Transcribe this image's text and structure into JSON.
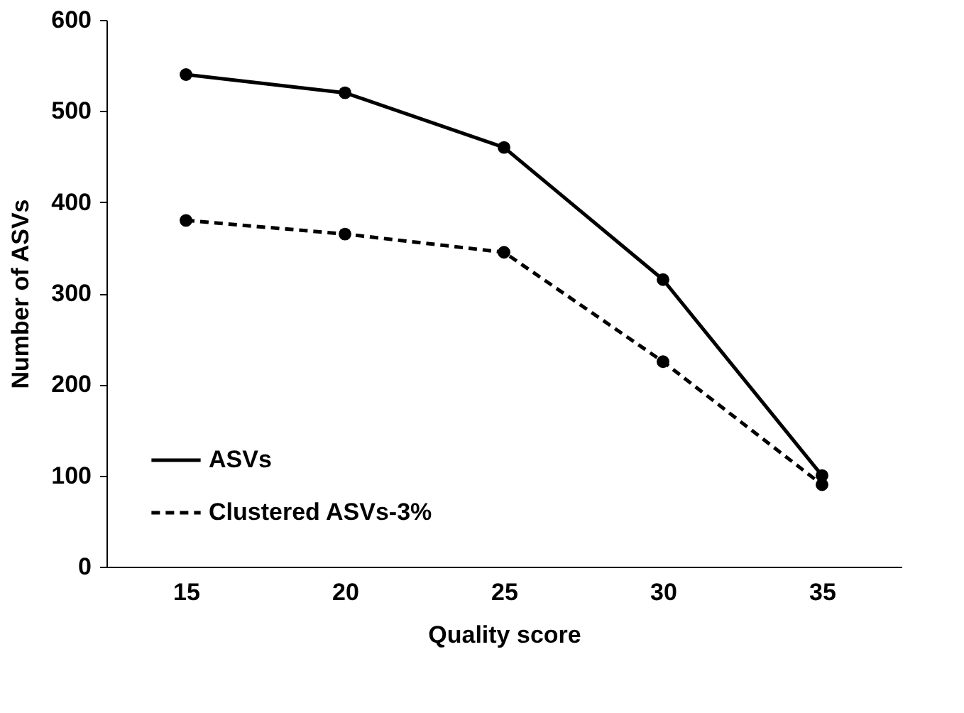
{
  "chart_data": {
    "type": "line",
    "xlabel": "Quality score",
    "ylabel": "Number of ASVs",
    "categories": [
      "15",
      "20",
      "25",
      "30",
      "35"
    ],
    "series": [
      {
        "name": "ASVs",
        "color": "#000000",
        "line_style": "solid",
        "values": [
          540,
          520,
          460,
          315,
          100
        ]
      },
      {
        "name": "Clustered ASVs-3%",
        "color": "#000000",
        "line_style": "dashed",
        "values": [
          380,
          365,
          345,
          225,
          90
        ]
      }
    ],
    "ylim": [
      0,
      600
    ],
    "yticks": [
      0,
      100,
      200,
      300,
      400,
      500,
      600
    ],
    "grid": false,
    "legend": "bottom left",
    "marker": "circle"
  }
}
